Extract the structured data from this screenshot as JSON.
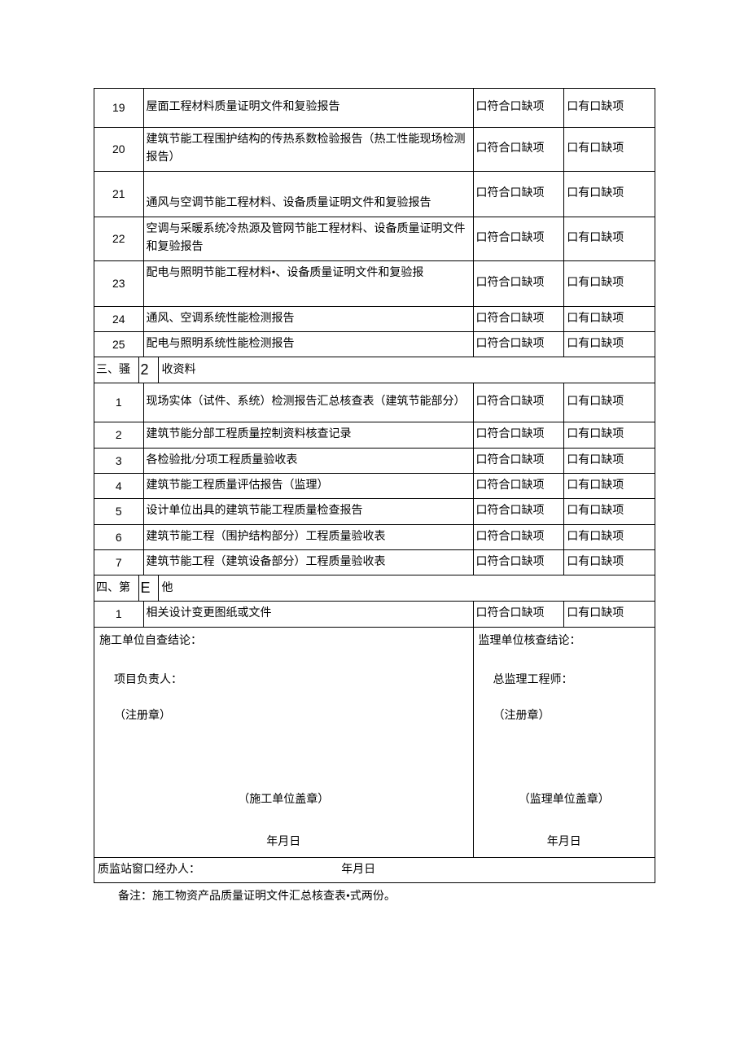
{
  "rows_a": [
    {
      "num": "19",
      "desc": "屋面工程材料质量证明文件和复验报告",
      "c3": "口符合口缺项",
      "c4": "口有口缺项",
      "cls": "tall"
    },
    {
      "num": "20",
      "desc": "建筑节能工程围护结构的传热系数检验报告（热工性能现场检测报告）",
      "c3": "口符合口缺项",
      "c4": "口有口缺项",
      "cls": "tall"
    },
    {
      "num": "21",
      "desc": "通风与空调节能工程材料、设备质量证明文件和复验报告",
      "c3": "口符合口缺项",
      "c4": "口有口缺项",
      "cls": "taller",
      "valign": "bottom"
    },
    {
      "num": "22",
      "desc": "空调与采暖系统冷热源及管网节能工程材料、设备质量证明文件和复验报告",
      "c3": "口符合口缺项",
      "c4": "口有口缺项",
      "cls": "tall"
    },
    {
      "num": "23",
      "desc": "配电与照明节能工程材料•、设备质量证明文件和复验报",
      "c3": "口符合口缺项",
      "c4": "口有口缺项",
      "cls": "taller",
      "valign_desc": "top"
    },
    {
      "num": "24",
      "desc": "通风、空调系统性能检测报告",
      "c3": "口符合口缺项",
      "c4": "口有口缺项",
      "cls": "short"
    },
    {
      "num": "25",
      "desc": "配电与照明系统性能检测报告",
      "c3": "口符合口缺项",
      "c4": "口有口缺项",
      "cls": "short"
    }
  ],
  "section3": {
    "left": "三、骚",
    "num": "2",
    "rest": "收资料"
  },
  "rows_b": [
    {
      "num": "1",
      "desc": "现场实体（试件、系统）检测报告汇总核查表（建筑节能部分）",
      "c3": "口符合口缺项",
      "c4": "口有口缺项",
      "cls": "tall"
    },
    {
      "num": "2",
      "desc": "建筑节能分部工程质量控制资料核查记录",
      "c3": "口符合口缺项",
      "c4": "口有口缺项",
      "cls": "short"
    },
    {
      "num": "3",
      "desc": "各检验批/分项工程质量验收表",
      "c3": "口符合口缺项",
      "c4": "口有口缺项",
      "cls": "short"
    },
    {
      "num": "4",
      "desc": "建筑节能工程质量评估报告（监理）",
      "c3": "口符合口缺项",
      "c4": "口有口缺项",
      "cls": "short"
    },
    {
      "num": "5",
      "desc": "设计单位出具的建筑节能工程质量检查报告",
      "c3": "口符合口缺项",
      "c4": "口有口缺项",
      "cls": "short"
    },
    {
      "num": "6",
      "desc": "建筑节能工程（围护结构部分）工程质量验收表",
      "c3": "口符合口缺项",
      "c4": "口有口缺项",
      "cls": ""
    },
    {
      "num": "7",
      "desc": "建筑节能工程（建筑设备部分）工程质量验收表",
      "c3": "口符合口缺项",
      "c4": "口有口缺项",
      "cls": ""
    }
  ],
  "section4": {
    "left": "四、第",
    "num": "E",
    "rest": "他"
  },
  "rows_c": [
    {
      "num": "1",
      "desc": "相关设计变更图纸或文件",
      "c3": "口符合口缺项",
      "c4": "口有口缺项",
      "cls": "short"
    }
  ],
  "signature": {
    "left": {
      "title": "施工单位自查结论：",
      "person_label": "项目负责人：",
      "seal": "（注册章）",
      "stamp": "（施工单位盖章）",
      "date": "年月日"
    },
    "right": {
      "title": "监理单位核查结论：",
      "person_label": "总监理工程师：",
      "seal": "（注册章）",
      "stamp": "（监理单位盖章）",
      "date": "年月日"
    }
  },
  "bottom_row": {
    "left": "质监站窗口经办人：",
    "right": "年月日"
  },
  "footer_note": "备注：施工物资产品质量证明文件汇总核查表•式两份。"
}
